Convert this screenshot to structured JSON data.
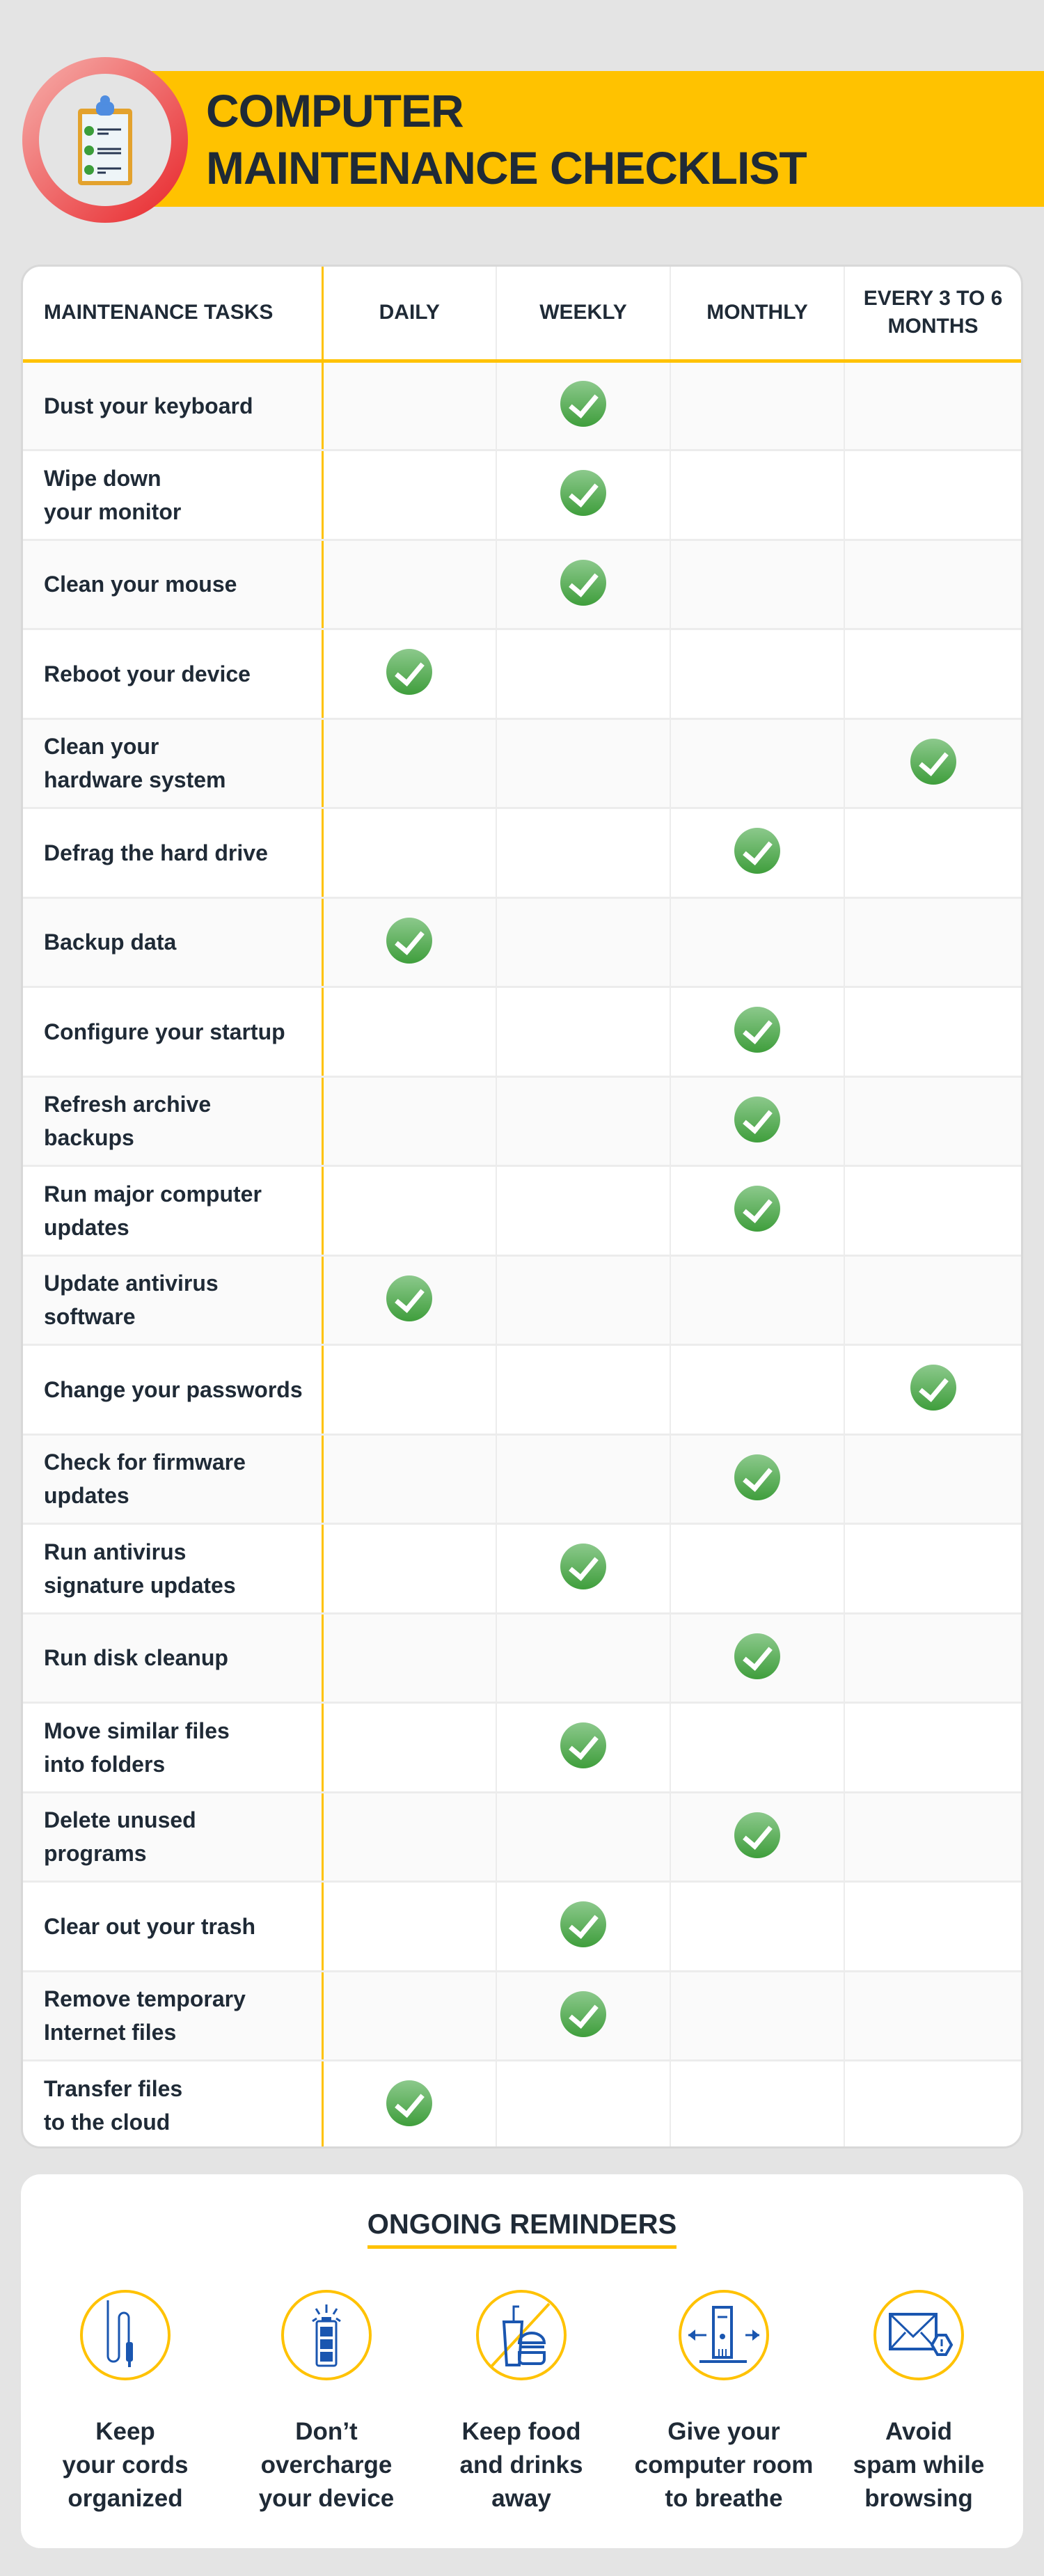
{
  "header": {
    "title_line1": "COMPUTER",
    "title_line2": "MAINTENANCE CHECKLIST",
    "icon": "clipboard-checklist-icon"
  },
  "colors": {
    "accent": "#ffc200",
    "check": "#3f9e3c",
    "text": "#1f2a36",
    "icon_blue": "#1a56b0",
    "ring": "#e8252a"
  },
  "table": {
    "columns": [
      "MAINTENANCE TASKS",
      "DAILY",
      "WEEKLY",
      "MONTHLY",
      "EVERY 3 TO 6 MONTHS"
    ],
    "rows": [
      {
        "task": "Dust your keyboard",
        "freq": "WEEKLY"
      },
      {
        "task": "Wipe down\nyour monitor",
        "freq": "WEEKLY"
      },
      {
        "task": "Clean your mouse",
        "freq": "WEEKLY"
      },
      {
        "task": "Reboot your device",
        "freq": "DAILY"
      },
      {
        "task": "Clean your\nhardware system",
        "freq": "EVERY 3 TO 6 MONTHS"
      },
      {
        "task": "Defrag the hard drive",
        "freq": "MONTHLY"
      },
      {
        "task": "Backup data",
        "freq": "DAILY"
      },
      {
        "task": "Configure your startup",
        "freq": "MONTHLY"
      },
      {
        "task": "Refresh archive\nbackups",
        "freq": "MONTHLY"
      },
      {
        "task": "Run major computer\nupdates",
        "freq": "MONTHLY"
      },
      {
        "task": "Update antivirus\nsoftware",
        "freq": "DAILY"
      },
      {
        "task": "Change your passwords",
        "freq": "EVERY 3 TO 6 MONTHS"
      },
      {
        "task": "Check for firmware\nupdates",
        "freq": "MONTHLY"
      },
      {
        "task": "Run antivirus\nsignature updates",
        "freq": "WEEKLY"
      },
      {
        "task": "Run disk cleanup",
        "freq": "MONTHLY"
      },
      {
        "task": "Move similar files\ninto folders",
        "freq": "WEEKLY"
      },
      {
        "task": "Delete unused\nprograms",
        "freq": "MONTHLY"
      },
      {
        "task": "Clear out your trash",
        "freq": "WEEKLY"
      },
      {
        "task": "Remove temporary\nInternet files",
        "freq": "WEEKLY"
      },
      {
        "task": "Transfer files\nto the cloud",
        "freq": "DAILY"
      }
    ]
  },
  "reminders": {
    "title": "ONGOING REMINDERS",
    "items": [
      {
        "label": "Keep\nyour cords\norganized",
        "icon": "cable-icon"
      },
      {
        "label": "Don’t\novercharge\nyour device",
        "icon": "battery-icon"
      },
      {
        "label": "Keep food\nand drinks\naway",
        "icon": "no-food-icon"
      },
      {
        "label": "Give your\ncomputer room\nto breathe",
        "icon": "computer-tower-icon"
      },
      {
        "label": "Avoid\nspam while\nbrowsing",
        "icon": "spam-email-icon"
      }
    ]
  }
}
